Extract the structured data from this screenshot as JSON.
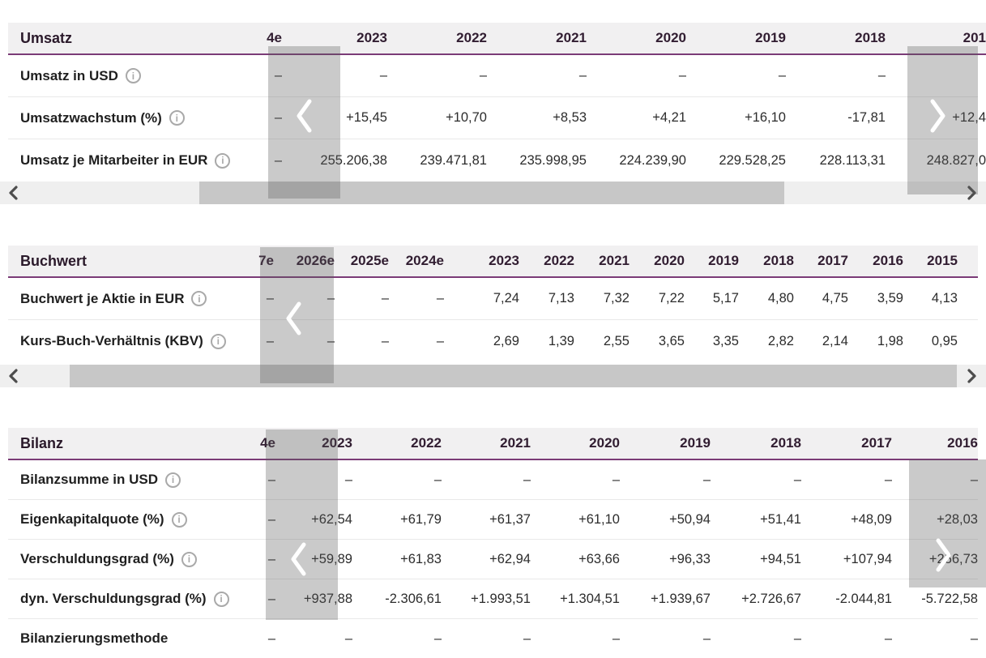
{
  "colors": {
    "accent_purple": "#7b3b77",
    "header_background": "#f1f0f1",
    "header_text": "#311d31",
    "scroll_overlay": "rgba(90,90,90,0.32)",
    "scroll_overlay_chevron": "#ffffff",
    "scrollbar_track": "#efefef",
    "scrollbar_thumb": "#c7c7c7",
    "scrollbar_arrow": "#4d4d4d",
    "info_icon": "#a9a9a9"
  },
  "icons": {
    "info_glyph": "i",
    "scroll_left": "chevron-left",
    "scroll_right": "chevron-right"
  },
  "tables": [
    {
      "title": "Umsatz",
      "columns": [
        "4e",
        "2023",
        "2022",
        "2021",
        "2020",
        "2019",
        "2018",
        "201"
      ],
      "rows": [
        {
          "label": "Umsatz in USD",
          "info": true,
          "values": [
            "–",
            "–",
            "–",
            "–",
            "–",
            "–",
            "–",
            ""
          ]
        },
        {
          "label": "Umsatzwachstum (%)",
          "info": true,
          "values": [
            "–",
            "+15,45",
            "+10,70",
            "+8,53",
            "+4,21",
            "+16,10",
            "-17,81",
            "+12,4"
          ]
        },
        {
          "label": "Umsatz je Mitarbeiter in EUR",
          "info": true,
          "values": [
            "–",
            "255.206,38",
            "239.471,81",
            "235.998,95",
            "224.239,90",
            "229.528,25",
            "228.113,31",
            "248.827,0"
          ]
        }
      ],
      "has_scrollbar": true
    },
    {
      "title": "Buchwert",
      "columns": [
        "7e",
        "2026e",
        "2025e",
        "2024e",
        "2023",
        "2022",
        "2021",
        "2020",
        "2019",
        "2018",
        "2017",
        "2016",
        "2015"
      ],
      "rows": [
        {
          "label": "Buchwert je Aktie in EUR",
          "info": true,
          "values": [
            "–",
            "–",
            "–",
            "–",
            "7,24",
            "7,13",
            "7,32",
            "7,22",
            "5,17",
            "4,80",
            "4,75",
            "3,59",
            "4,13"
          ]
        },
        {
          "label": "Kurs-Buch-Verhältnis (KBV)",
          "info": true,
          "values": [
            "–",
            "–",
            "–",
            "–",
            "2,69",
            "1,39",
            "2,55",
            "3,65",
            "3,35",
            "2,82",
            "2,14",
            "1,98",
            "0,95"
          ]
        }
      ],
      "has_scrollbar": true
    },
    {
      "title": "Bilanz",
      "columns": [
        "4e",
        "2023",
        "2022",
        "2021",
        "2020",
        "2019",
        "2018",
        "2017",
        "2016"
      ],
      "rows": [
        {
          "label": "Bilanzsumme in USD",
          "info": true,
          "values": [
            "–",
            "–",
            "–",
            "–",
            "–",
            "–",
            "–",
            "–",
            "–"
          ]
        },
        {
          "label": "Eigenkapitalquote (%)",
          "info": true,
          "values": [
            "–",
            "+62,54",
            "+61,79",
            "+61,37",
            "+61,10",
            "+50,94",
            "+51,41",
            "+48,09",
            "+28,03"
          ]
        },
        {
          "label": "Verschuldungsgrad (%)",
          "info": true,
          "values": [
            "–",
            "+59,89",
            "+61,83",
            "+62,94",
            "+63,66",
            "+96,33",
            "+94,51",
            "+107,94",
            "+256,73"
          ]
        },
        {
          "label": "dyn. Verschuldungsgrad (%)",
          "info": true,
          "values": [
            "–",
            "+937,88",
            "-2.306,61",
            "+1.993,51",
            "+1.304,51",
            "+1.939,67",
            "+2.726,67",
            "-2.044,81",
            "-5.722,58"
          ]
        },
        {
          "label": "Bilanzierungsmethode",
          "info": false,
          "values": [
            "–",
            "–",
            "–",
            "–",
            "–",
            "–",
            "–",
            "–",
            "–"
          ]
        }
      ],
      "has_scrollbar": false
    }
  ]
}
